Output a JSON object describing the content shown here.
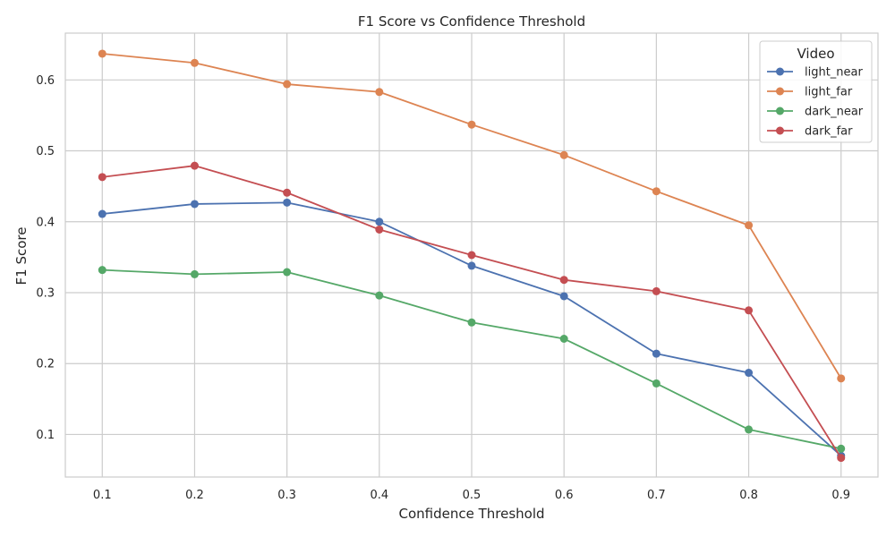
{
  "chart_data": {
    "type": "line",
    "title": "F1 Score vs Confidence Threshold",
    "xlabel": "Confidence Threshold",
    "ylabel": "F1 Score",
    "x": [
      0.1,
      0.2,
      0.3,
      0.4,
      0.5,
      0.6,
      0.7,
      0.8,
      0.9
    ],
    "x_tick_labels": [
      "0.1",
      "0.2",
      "0.3",
      "0.4",
      "0.5",
      "0.6",
      "0.7",
      "0.8",
      "0.9"
    ],
    "y_ticks": [
      0.1,
      0.2,
      0.3,
      0.4,
      0.5,
      0.6
    ],
    "y_tick_labels": [
      "0.1",
      "0.2",
      "0.3",
      "0.4",
      "0.5",
      "0.6"
    ],
    "xlim": [
      0.06,
      0.94
    ],
    "ylim": [
      0.04,
      0.666
    ],
    "grid": true,
    "legend": {
      "title": "Video",
      "placement": "top-right"
    },
    "series": [
      {
        "name": "light_near",
        "color": "#4c72b0",
        "values": [
          0.411,
          0.425,
          0.427,
          0.4,
          0.338,
          0.295,
          0.214,
          0.187,
          0.07
        ]
      },
      {
        "name": "light_far",
        "color": "#dd8452",
        "values": [
          0.637,
          0.624,
          0.594,
          0.583,
          0.537,
          0.494,
          0.443,
          0.395,
          0.179
        ]
      },
      {
        "name": "dark_near",
        "color": "#55a868",
        "values": [
          0.332,
          0.326,
          0.329,
          0.296,
          0.258,
          0.235,
          0.172,
          0.107,
          0.08
        ]
      },
      {
        "name": "dark_far",
        "color": "#c44e52",
        "values": [
          0.463,
          0.479,
          0.441,
          0.389,
          0.353,
          0.318,
          0.302,
          0.275,
          0.067
        ]
      }
    ]
  }
}
